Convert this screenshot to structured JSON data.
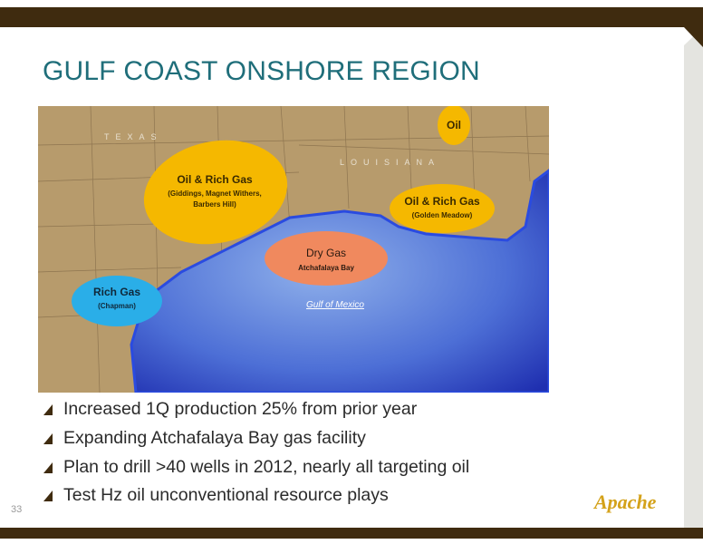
{
  "header": {
    "title": "GULF COAST ONSHORE REGION"
  },
  "map": {
    "state_labels": [
      "TEXAS",
      "LOUISIANA"
    ],
    "sea_label": "Gulf of Mexico",
    "regions": [
      {
        "label": "Oil"
      },
      {
        "label": "Oil & Rich Gas",
        "detail": [
          "(Giddings, Magnet Withers,",
          "Barbers Hill)"
        ]
      },
      {
        "label": "Oil & Rich Gas",
        "detail": [
          "(Golden Meadow)"
        ]
      },
      {
        "label": "Dry Gas",
        "detail": [
          "Atchafalaya Bay"
        ]
      },
      {
        "label": "Rich Gas",
        "detail": [
          "(Chapman)"
        ]
      }
    ]
  },
  "bullets": [
    "Increased 1Q production 25% from prior year",
    "Expanding Atchafalaya Bay gas facility",
    "Plan to drill >40 wells in 2012, nearly all targeting oil",
    "Test Hz oil unconventional resource plays"
  ],
  "footer": {
    "page_number": "33",
    "logo": "Apache"
  }
}
